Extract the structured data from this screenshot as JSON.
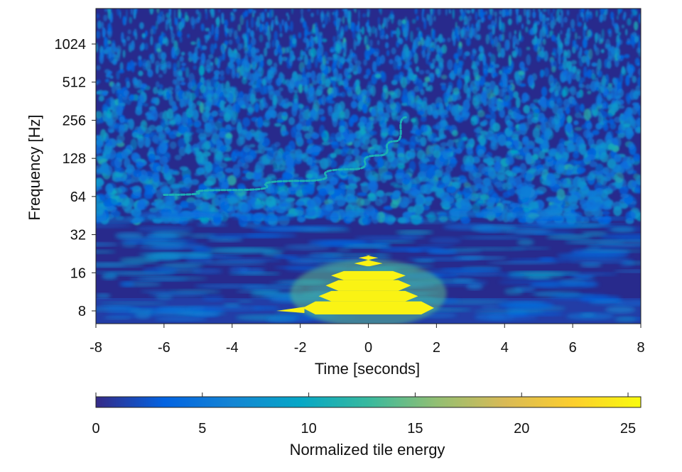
{
  "chart_data": {
    "type": "heatmap",
    "title": "",
    "xlabel": "Time [seconds]",
    "ylabel": "Frequency [Hz]",
    "xlim": [
      -8,
      8
    ],
    "ylim": [
      6,
      2048
    ],
    "yscale": "log2",
    "x_ticks": [
      -8,
      -6,
      -4,
      -2,
      0,
      2,
      4,
      6,
      8
    ],
    "x_tick_labels": [
      "-8",
      "-6",
      "-4",
      "-2",
      "0",
      "2",
      "4",
      "6",
      "8"
    ],
    "y_ticks": [
      8,
      16,
      32,
      64,
      128,
      256,
      512,
      1024
    ],
    "y_tick_labels": [
      "8",
      "16",
      "32",
      "64",
      "128",
      "256",
      "512",
      "1024"
    ],
    "features": [
      {
        "name": "chirp",
        "points": [
          [
            -6.0,
            66
          ],
          [
            -4.0,
            72
          ],
          [
            -2.0,
            85
          ],
          [
            -0.5,
            105
          ],
          [
            0.3,
            135
          ],
          [
            0.8,
            175
          ],
          [
            1.1,
            270
          ]
        ],
        "energy": 11
      },
      {
        "name": "low-frequency-glitch",
        "t_center": 0.0,
        "t_width": 1.4,
        "f_low": 7.5,
        "f_high": 22,
        "energy": 25
      }
    ],
    "colorbar": {
      "label": "Normalized tile energy",
      "range": [
        0,
        25.6
      ],
      "ticks": [
        0,
        5,
        10,
        15,
        20,
        25
      ],
      "tick_labels": [
        "0",
        "5",
        "10",
        "15",
        "20",
        "25"
      ],
      "colormap": [
        "#352a87",
        "#0363e1",
        "#1485d4",
        "#06a7c6",
        "#38b99e",
        "#92bf73",
        "#d9ba56",
        "#fcce2e",
        "#f9fb0e"
      ]
    }
  }
}
